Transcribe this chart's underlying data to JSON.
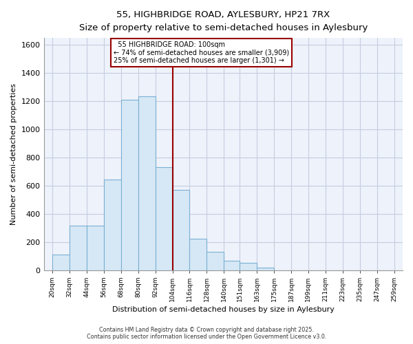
{
  "title": "55, HIGHBRIDGE ROAD, AYLESBURY, HP21 7RX",
  "subtitle": "Size of property relative to semi-detached houses in Aylesbury",
  "xlabel": "Distribution of semi-detached houses by size in Aylesbury",
  "ylabel": "Number of semi-detached properties",
  "bar_edges": [
    20,
    32,
    44,
    56,
    68,
    80,
    92,
    104,
    116,
    128,
    140,
    151,
    163,
    175,
    187,
    199,
    211,
    223,
    235,
    247,
    259
  ],
  "bar_heights": [
    110,
    315,
    315,
    645,
    1210,
    1235,
    730,
    570,
    225,
    130,
    65,
    50,
    20,
    0,
    0,
    0,
    0,
    0,
    0,
    0
  ],
  "bar_color": "#d6e8f5",
  "bar_edge_color": "#7ab0d4",
  "vline_x": 104,
  "vline_color": "#990000",
  "annotation_line1": "55 HIGHBRIDGE ROAD: 100sqm",
  "annotation_line2": "← 74% of semi-detached houses are smaller (3,909)",
  "annotation_line3": "25% of semi-detached houses are larger (1,301) →",
  "ylim": [
    0,
    1650
  ],
  "xlim": [
    14,
    265
  ],
  "yticks": [
    0,
    200,
    400,
    600,
    800,
    1000,
    1200,
    1400,
    1600
  ],
  "footer_line1": "Contains HM Land Registry data © Crown copyright and database right 2025.",
  "footer_line2": "Contains public sector information licensed under the Open Government Licence v3.0.",
  "bg_color": "#eef2fa",
  "grid_color": "#c5cde0"
}
